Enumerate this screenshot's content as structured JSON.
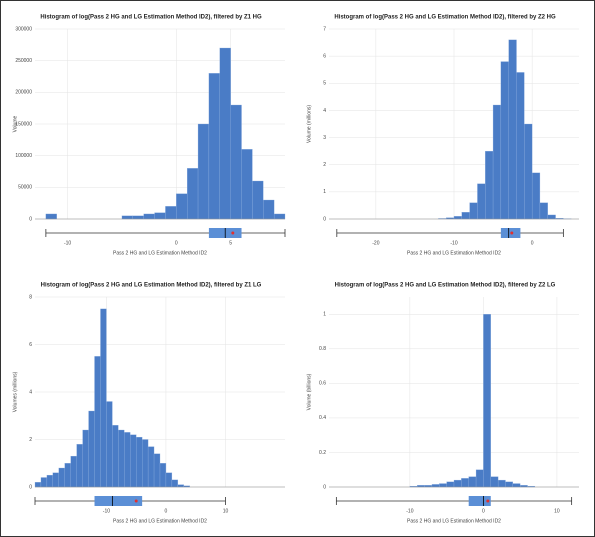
{
  "chart_data": [
    {
      "type": "histogram",
      "title": "Histogram of log(Pass 2 HG and LG Estimation Method ID2), filtered by Z1 HG",
      "x_label": "Pass 2 HG and LG Estimation Method ID2",
      "y_label": "Volume",
      "color": "#4a7cc6",
      "bins": [
        -12,
        -11,
        -10,
        -9,
        -8,
        -7,
        -6,
        -5,
        -4,
        -3,
        -2,
        -1,
        0,
        1,
        2,
        3,
        4,
        5,
        6,
        7,
        8,
        9,
        10
      ],
      "counts": [
        8000,
        0,
        0,
        0,
        0,
        0,
        0,
        5000,
        5000,
        8000,
        10000,
        20000,
        40000,
        80000,
        150000,
        230000,
        270000,
        180000,
        110000,
        60000,
        30000,
        8000
      ],
      "xlim": [
        -13,
        10
      ],
      "xticks": [
        -10,
        0,
        5
      ],
      "ylim": [
        0,
        300000
      ],
      "yticks": [
        0,
        50000,
        100000,
        150000,
        200000,
        250000,
        300000
      ],
      "box": [
        -12,
        3,
        4.5,
        6,
        10
      ],
      "mean": 5.2,
      "grid": true
    },
    {
      "type": "histogram",
      "title": "Histogram of log(Pass 2 HG and LG Estimation Method ID2), filtered by Z2 HG",
      "x_label": "Pass 2 HG and LG Estimation Method ID2",
      "y_label": "Volume (millions)",
      "color": "#4a7cc6",
      "bins": [
        -25,
        -24,
        -23,
        -22,
        -21,
        -20,
        -19,
        -18,
        -17,
        -16,
        -15,
        -14,
        -13,
        -12,
        -11,
        -10,
        -9,
        -8,
        -7,
        -6,
        -5,
        -4,
        -3,
        -2,
        -1,
        0,
        1,
        2,
        3,
        4,
        5
      ],
      "counts": [
        0,
        0,
        0,
        0,
        0,
        0,
        0,
        0,
        0,
        0,
        0,
        0,
        0,
        0.02,
        0.05,
        0.1,
        0.25,
        0.6,
        1.3,
        2.5,
        4.2,
        5.8,
        6.6,
        5.4,
        3.5,
        1.7,
        0.6,
        0.15,
        0.03,
        0.01
      ],
      "xlim": [
        -26,
        6
      ],
      "xticks": [
        -20,
        -10,
        0
      ],
      "ylim": [
        0,
        7
      ],
      "yticks": [
        0,
        1,
        2,
        3,
        4,
        5,
        6,
        7
      ],
      "box": [
        -25,
        -4,
        -3,
        -1.5,
        4
      ],
      "mean": -2.6,
      "grid": true
    },
    {
      "type": "histogram",
      "title": "Histogram of log(Pass 2 HG and LG Estimation Method ID2), filtered by Z1 LG",
      "x_label": "Pass 2 HG and LG Estimation Method ID2",
      "y_label": "Volumes (millions)",
      "color": "#4a7cc6",
      "bins": [
        -22,
        -21,
        -20,
        -19,
        -18,
        -17,
        -16,
        -15,
        -14,
        -13,
        -12,
        -11,
        -10,
        -9,
        -8,
        -7,
        -6,
        -5,
        -4,
        -3,
        -2,
        -1,
        0,
        1,
        2,
        3,
        4,
        5,
        6,
        7,
        8,
        9,
        10
      ],
      "counts": [
        0.2,
        0.4,
        0.5,
        0.6,
        0.8,
        1.0,
        1.3,
        1.8,
        2.4,
        3.2,
        5.5,
        7.5,
        3.6,
        2.6,
        2.4,
        2.3,
        2.2,
        2.1,
        2.0,
        1.7,
        1.4,
        1.0,
        0.6,
        0.3,
        0.1,
        0.05,
        0,
        0,
        0,
        0,
        0,
        0
      ],
      "xlim": [
        -22,
        20
      ],
      "xticks": [
        -10,
        0,
        10
      ],
      "ylim": [
        0,
        8
      ],
      "yticks": [
        0,
        2,
        4,
        6,
        8
      ],
      "box": [
        -22,
        -12,
        -9,
        -4,
        10
      ],
      "mean": -5,
      "grid": true
    },
    {
      "type": "histogram",
      "title": "Histogram of log(Pass 2 HG and LG Estimation Method ID2), filtered by Z2 LG",
      "x_label": "Pass 2 HG and LG Estimation Method ID2",
      "y_label": "Volume (billions)",
      "color": "#4a7cc6",
      "bins": [
        -20,
        -19,
        -18,
        -17,
        -16,
        -15,
        -14,
        -13,
        -12,
        -11,
        -10,
        -9,
        -8,
        -7,
        -6,
        -5,
        -4,
        -3,
        -2,
        -1,
        0,
        1,
        2,
        3,
        4,
        5,
        6,
        7,
        8,
        9,
        10,
        11,
        12
      ],
      "counts": [
        0,
        0,
        0,
        0,
        0,
        0,
        0,
        0,
        0,
        0,
        0.005,
        0.01,
        0.01,
        0.015,
        0.02,
        0.03,
        0.04,
        0.05,
        0.06,
        0.1,
        1.0,
        0.06,
        0.04,
        0.03,
        0.02,
        0.01,
        0.005,
        0,
        0,
        0,
        0,
        0
      ],
      "xlim": [
        -21,
        13
      ],
      "xticks": [
        -10,
        0,
        10
      ],
      "ylim": [
        0,
        1.1
      ],
      "yticks": [
        0,
        0.2,
        0.4,
        0.6,
        0.8,
        1
      ],
      "box": [
        -20,
        -2,
        0,
        1,
        12
      ],
      "mean": 0.6,
      "grid": true
    }
  ]
}
